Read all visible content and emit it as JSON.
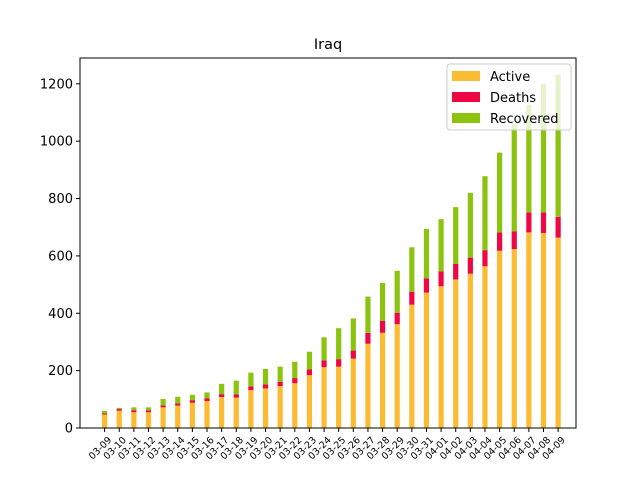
{
  "chart_data": {
    "type": "bar",
    "stacked": true,
    "title": "Iraq",
    "xlabel": "",
    "ylabel": "",
    "ylim": [
      0,
      1290
    ],
    "yticks": [
      0,
      200,
      400,
      600,
      800,
      1000,
      1200
    ],
    "grid": false,
    "legend_position": "top-right",
    "categories": [
      "03-09",
      "03-10",
      "03-11",
      "03-12",
      "03-13",
      "03-14",
      "03-15",
      "03-16",
      "03-17",
      "03-18",
      "03-19",
      "03-20",
      "03-21",
      "03-22",
      "03-23",
      "03-24",
      "03-25",
      "03-26",
      "03-27",
      "03-28",
      "03-29",
      "03-30",
      "03-31",
      "04-01",
      "04-02",
      "04-03",
      "04-04",
      "04-05",
      "04-06",
      "04-07",
      "04-08",
      "04-09"
    ],
    "series": [
      {
        "name": "Active",
        "color": "#fbbc33",
        "values": [
          47,
          60,
          55,
          55,
          72,
          78,
          88,
          94,
          108,
          106,
          132,
          138,
          146,
          156,
          184,
          212,
          214,
          242,
          294,
          332,
          362,
          430,
          472,
          494,
          518,
          538,
          564,
          618,
          624,
          682,
          680,
          664
        ]
      },
      {
        "name": "Deaths",
        "color": "#ef0744",
        "values": [
          4,
          6,
          7,
          7,
          7,
          8,
          9,
          10,
          10,
          11,
          13,
          14,
          15,
          18,
          20,
          24,
          26,
          28,
          38,
          42,
          40,
          45,
          50,
          52,
          54,
          56,
          56,
          64,
          62,
          70,
          72,
          72
        ]
      },
      {
        "name": "Recovered",
        "color": "#8bc30e",
        "values": [
          9,
          4,
          10,
          10,
          22,
          23,
          19,
          20,
          36,
          48,
          48,
          54,
          53,
          57,
          62,
          80,
          108,
          112,
          126,
          132,
          146,
          155,
          172,
          182,
          198,
          226,
          258,
          278,
          374,
          376,
          448,
          496
        ]
      }
    ]
  }
}
